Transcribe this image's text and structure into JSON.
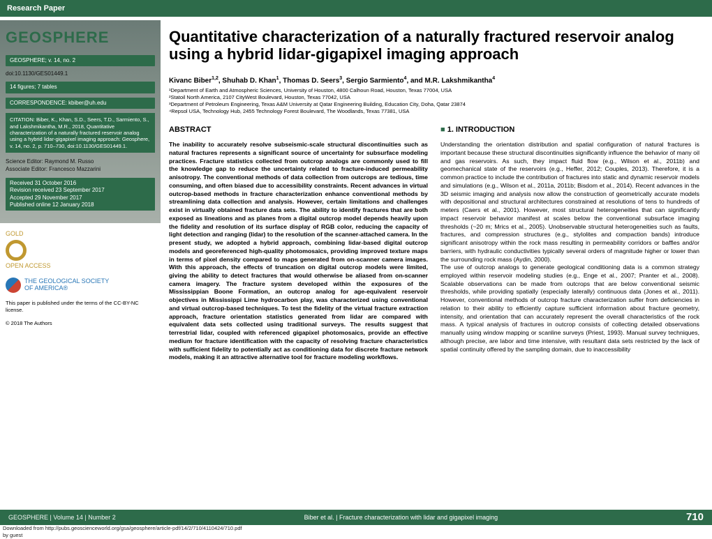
{
  "header": {
    "label": "Research Paper"
  },
  "sidebar": {
    "journal_title": "GEOSPHERE",
    "volume_line": "GEOSPHERE; v. 14, no. 2",
    "doi": "doi:10.1130/GES01449.1",
    "figures_tables": "14 figures; 7 tables",
    "correspondence": "CORRESPONDENCE: kbiber@uh.edu",
    "citation": "CITATION: Biber, K., Khan, S.D., Seers, T.D., Sarmiento, S., and Lakshmikantha, M.R., 2018, Quantitative characterization of a naturally fractured reservoir analog using a hybrid lidar-gigapixel imaging approach: Geosphere, v. 14, no. 2, p. 710–730, doi:10.1130/GES01449.1.",
    "editor1": "Science Editor: Raymond M. Russo",
    "editor2": "Associate Editor: Francesco Mazzarini",
    "dates": "Received 31 October 2016\nRevision received 23 September 2017\nAccepted 29 November 2017\nPublished online 12 January 2018",
    "gold": "GOLD",
    "open_access": "OPEN ACCESS",
    "gsa_line1": "THE GEOLOGICAL SOCIETY",
    "gsa_line2": "OF AMERICA®",
    "license": "This paper is published under the terms of the CC-BY-NC license.",
    "copyright": "© 2018 The Authors"
  },
  "article": {
    "title": "Quantitative characterization of a naturally fractured reservoir analog using a hybrid lidar-gigapixel imaging approach",
    "authors_html": "Kivanc Biber<sup>1,2</sup>, Shuhab D. Khan<sup>1</sup>, Thomas D. Seers<sup>3</sup>, Sergio Sarmiento<sup>4</sup>, and M.R. Lakshmikantha<sup>4</sup>",
    "affiliations": [
      "¹Department of Earth and Atmospheric Sciences, University of Houston, 4800 Calhoun Road, Houston, Texas 77004, USA",
      "²Statoil North America, 2107 CityWest Boulevard, Houston, Texas 77042, USA",
      "³Department of Petroleum Engineering, Texas A&M University at Qatar Engineering Building, Education City, Doha, Qatar 23874",
      "⁴Repsol USA, Technology Hub, 2455 Technology Forest Boulevard, The Woodlands, Texas 77381, USA"
    ],
    "abstract_head": "ABSTRACT",
    "abstract_body": "The inability to accurately resolve subseismic-scale structural discontinuities such as natural fractures represents a significant source of uncertainty for subsurface modeling practices. Fracture statistics collected from outcrop analogs are commonly used to fill the knowledge gap to reduce the uncertainty related to fracture-induced permeability anisotropy. The conventional methods of data collection from outcrops are tedious, time consuming, and often biased due to accessibility constraints. Recent advances in virtual outcrop-based methods in fracture characterization enhance conventional methods by streamlining data collection and analysis. However, certain limitations and challenges exist in virtually obtained fracture data sets. The ability to identify fractures that are both exposed as lineations and as planes from a digital outcrop model depends heavily upon the fidelity and resolution of its surface display of RGB color, reducing the capacity of light detection and ranging (lidar) to the resolution of the scanner-attached camera. In the present study, we adopted a hybrid approach, combining lidar-based digital outcrop models and georeferenced high-quality photomosaics, providing improved texture maps in terms of pixel density compared to maps generated from on-scanner camera images. With this approach, the effects of truncation on digital outcrop models were limited, giving the ability to detect fractures that would otherwise be aliased from on-scanner camera imagery. The fracture system developed within the exposures of the Mississippian Boone Formation, an outcrop analog for age-equivalent reservoir objectives in Mississippi Lime hydrocarbon play, was characterized using conventional and virtual outcrop-based techniques. To test the fidelity of the virtual fracture extraction approach, fracture orientation statistics generated from lidar are compared with equivalent data sets collected using traditional surveys. The results suggest that terrestrial lidar, coupled with referenced gigapixel photomosaics, provide an effective medium for fracture identification with the capacity of resolving fracture characteristics with sufficient fidelity to potentially act as conditioning data for discrete fracture network models, making it an attractive alternative tool for fracture modeling workflows.",
    "intro_head": "1. INTRODUCTION",
    "intro_p1": "Understanding the orientation distribution and spatial configuration of natural fractures is important because these structural discontinuities significantly influence the behavior of many oil and gas reservoirs. As such, they impact fluid flow (e.g., Wilson et al., 2011b) and geomechanical state of the reservoirs (e.g., Heffer, 2012; Couples, 2013). Therefore, it is a common practice to include the contribution of fractures into static and dynamic reservoir models and simulations (e.g., Wilson et al., 2011a, 2011b; Bisdom et al., 2014). Recent advances in the 3D seismic imaging and analysis now allow the construction of geometrically accurate models with depositional and structural architectures constrained at resolutions of tens to hundreds of meters (Caers et al., 2001). However, most structural heterogeneities that can significantly impact reservoir behavior manifest at scales below the conventional subsurface imaging thresholds (~20 m; Mrics et al., 2005). Unobservable structural heterogeneities such as faults, fractures, and compression structures (e.g., stylolites and compaction bands) introduce significant anisotropy within the rock mass resulting in permeability corridors or baffles and/or barriers, with hydraulic conductivities typically several orders of magnitude higher or lower than the surrounding rock mass (Aydin, 2000).",
    "intro_p2": "The use of outcrop analogs to generate geological conditioning data is a common strategy employed within reservoir modeling studies (e.g., Enge et al., 2007; Pranter et al., 2008). Scalable observations can be made from outcrops that are below conventional seismic thresholds, while providing spatially (especially laterally) continuous data (Jones et al., 2011). However, conventional methods of outcrop fracture characterization suffer from deficiencies in relation to their ability to efficiently capture sufficient information about fracture geometry, intensity, and orientation that can accurately represent the overall characteristics of the rock mass. A typical analysis of fractures in outcrop consists of collecting detailed observations manually using window mapping or scanline surveys (Priest, 1993). Manual survey techniques, although precise, are labor and time intensive, with resultant data sets restricted by the lack of spatial continuity offered by the sampling domain, due to inaccessibility"
  },
  "footer": {
    "left": "GEOSPHERE | Volume 14 | Number 2",
    "center": "Biber et al. | Fracture characterization with lidar and gigapixel imaging",
    "page": "710",
    "download": "Downloaded from http://pubs.geoscienceworld.org/gsa/geosphere/article-pdf/14/2/710/4110424/710.pdf",
    "byguest": "by guest"
  },
  "colors": {
    "brand_green": "#2d6b4a",
    "gold": "#c09830",
    "gsa_blue": "#2876b6"
  }
}
